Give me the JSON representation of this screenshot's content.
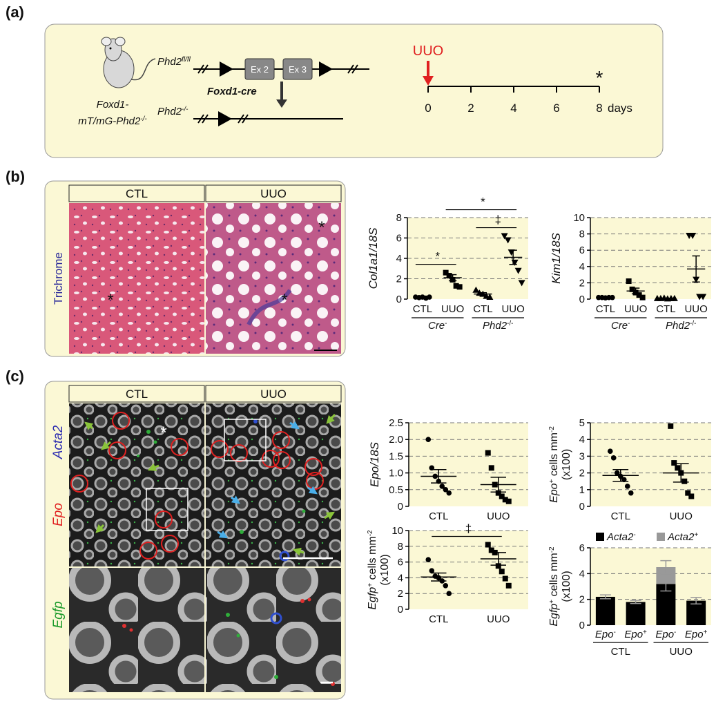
{
  "panel_labels": [
    "(a)",
    "(b)",
    "(c)"
  ],
  "panel_a": {
    "mouse_label": {
      "line1": "Foxd1-",
      "line2": "mT/mG-Phd2",
      "line2_sup": "-/-"
    },
    "floxed_allele": {
      "text": "Phd2",
      "sup": "fl/fl"
    },
    "exons": [
      "Ex 2",
      "Ex 3"
    ],
    "recombinase": "Foxd1-cre",
    "null_allele": {
      "text": "Phd2",
      "sup": "-/-"
    },
    "timeline": {
      "event": "UUO",
      "xlim": [
        0,
        8
      ],
      "xticks": [
        0,
        2,
        4,
        6,
        8
      ],
      "unit": "days",
      "endpoint_mark": "*"
    }
  },
  "panel_b": {
    "image_headers": [
      "CTL",
      "UUO"
    ],
    "stain_label": "Trichrome",
    "image_marks": [
      "*",
      "*",
      "*"
    ],
    "charts": [
      {
        "type": "dot",
        "ylabel": {
          "text": "Col1a1/18S"
        },
        "ylim": [
          0,
          8
        ],
        "yticks": [
          0,
          2,
          4,
          6,
          8
        ],
        "categories": [
          "CTL",
          "UUO",
          "CTL",
          "UUO"
        ],
        "groups": [
          {
            "text": "Cre",
            "sup": "-"
          },
          {
            "text": "Phd2",
            "sup": "-/-"
          }
        ],
        "markers": [
          "circle",
          "square",
          "triangle-up",
          "triangle-down"
        ],
        "points": [
          [
            0.2,
            0.15,
            0.2,
            0.1,
            0.2
          ],
          [
            2.6,
            2.3,
            1.9,
            1.3,
            1.2
          ],
          [
            0.9,
            0.6,
            0.5,
            0.3,
            0.2
          ],
          [
            6.2,
            5.8,
            4.6,
            3.6,
            2.8,
            1.6
          ]
        ],
        "mean": [
          0.17,
          2.1,
          0.5,
          4.1
        ],
        "sem": [
          0.02,
          0.3,
          0.13,
          0.7
        ],
        "significance": [
          {
            "label": "*",
            "between": [
              0,
              1
            ]
          },
          {
            "label": "‡",
            "between": [
              2,
              3
            ]
          },
          {
            "label": "*",
            "between": [
              1,
              3
            ]
          }
        ]
      },
      {
        "type": "dot",
        "ylabel": {
          "text": "Kim1/18S"
        },
        "ylim": [
          0,
          10
        ],
        "yticks": [
          0,
          2,
          4,
          6,
          8,
          10
        ],
        "categories": [
          "CTL",
          "UUO",
          "CTL",
          "UUO"
        ],
        "groups": [
          {
            "text": "Cre",
            "sup": "-"
          },
          {
            "text": "Phd2",
            "sup": "-/-"
          }
        ],
        "markers": [
          "circle",
          "square",
          "triangle-up",
          "triangle-down"
        ],
        "points": [
          [
            0.2,
            0.2,
            0.15,
            0.2,
            0.2
          ],
          [
            2.2,
            1.2,
            0.8,
            0.5,
            0.2
          ],
          [
            0.1,
            0.1,
            0.15,
            0.05,
            0.1,
            0.1
          ],
          [
            7.8,
            7.8,
            2.4,
            0.3,
            0.3
          ]
        ],
        "mean": [
          0.19,
          1.0,
          0.1,
          3.7
        ],
        "sem": [
          0.01,
          0.35,
          0.01,
          1.6
        ]
      }
    ]
  },
  "panel_c": {
    "image_headers": [
      "CTL",
      "UUO"
    ],
    "channel_labels": [
      "Acta2",
      "Epo",
      "Egfp"
    ],
    "image_marks": [
      "*"
    ],
    "charts": [
      {
        "type": "dot",
        "ylabel": {
          "text": "Epo/18S"
        },
        "ylim": [
          0,
          2.5
        ],
        "yticks": [
          0,
          0.5,
          {
            "value": 1,
            "label": "1.0"
          },
          1.5,
          {
            "value": 2,
            "label": "2.0"
          },
          2.5
        ],
        "categories": [
          "CTL",
          "UUO"
        ],
        "markers": [
          "circle",
          "square"
        ],
        "points": [
          [
            2.0,
            1.15,
            0.9,
            0.75,
            0.6,
            0.5,
            0.4
          ],
          [
            1.6,
            1.15,
            0.65,
            0.4,
            0.3,
            0.2,
            0.15
          ]
        ],
        "mean": [
          0.9,
          0.65
        ],
        "sem": [
          0.2,
          0.22
        ]
      },
      {
        "type": "dot",
        "ylabel": {
          "text": "Epo",
          "sup": "+",
          "rest": " cells mm",
          "rest_sup": "-2",
          "line2": "(x100)"
        },
        "ylim": [
          0,
          5
        ],
        "yticks": [
          0,
          1,
          2,
          3,
          4,
          5
        ],
        "categories": [
          "CTL",
          "UUO"
        ],
        "markers": [
          "circle",
          "square"
        ],
        "points": [
          [
            3.3,
            2.9,
            2.0,
            1.8,
            1.6,
            1.2,
            0.8
          ],
          [
            4.8,
            2.6,
            2.3,
            2.0,
            1.5,
            0.8,
            0.6
          ]
        ],
        "mean": [
          1.85,
          2.0
        ],
        "sem": [
          0.35,
          0.55
        ]
      },
      {
        "type": "dot",
        "ylabel": {
          "text": "Egfp",
          "sup": "+",
          "rest": " cells mm",
          "rest_sup": "-2",
          "line2": "(x100)"
        },
        "ylim": [
          0,
          10
        ],
        "yticks": [
          0,
          2,
          4,
          6,
          8,
          10
        ],
        "categories": [
          "CTL",
          "UUO"
        ],
        "markers": [
          "circle",
          "square"
        ],
        "points": [
          [
            6.3,
            4.9,
            4.2,
            4.0,
            3.6,
            3.0,
            2.0
          ],
          [
            8.2,
            7.5,
            7.2,
            5.5,
            4.8,
            3.9,
            3.0
          ]
        ],
        "mean": [
          4.1,
          6.4
        ],
        "sem": [
          0.5,
          0.8
        ],
        "significance": [
          {
            "label": "‡",
            "between": [
              0,
              1
            ]
          }
        ]
      },
      {
        "type": "stacked_bar",
        "ylabel": {
          "text": "Egfp",
          "sup": "+",
          "rest": " cells mm",
          "rest_sup": "-2",
          "line2": "(x100)"
        },
        "ylim": [
          0,
          6
        ],
        "yticks": [
          0,
          2,
          4,
          6
        ],
        "categories": [
          "Epo",
          "Epo",
          "Epo",
          "Epo"
        ],
        "category_sups": [
          "-",
          "+",
          "-",
          "+"
        ],
        "groups": [
          {
            "text": "CTL"
          },
          {
            "text": "UUO"
          }
        ],
        "series": [
          {
            "name": "Acta2",
            "sup": "-",
            "color": "#000000",
            "values": [
              2.2,
              1.8,
              3.2,
              1.9
            ],
            "errors": [
              0.15,
              0.12,
              0.55,
              0.25
            ]
          },
          {
            "name": "Acta2",
            "sup": "+",
            "color": "#999999",
            "values": [
              0,
              0,
              1.3,
              0
            ],
            "errors": [
              null,
              null,
              0.5,
              null
            ]
          }
        ]
      }
    ]
  }
}
